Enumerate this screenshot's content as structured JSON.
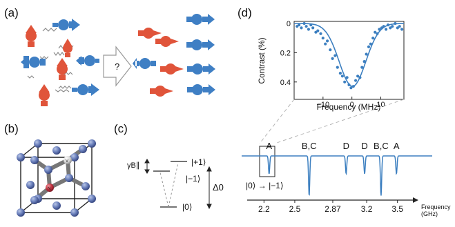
{
  "panel_labels": {
    "a": "(a)",
    "b": "(b)",
    "c": "(c)",
    "d": "(d)"
  },
  "panel_a": {
    "arrow_label": "?"
  },
  "panel_b": {
    "atom_n": "N",
    "atom_v": "V"
  },
  "panel_c": {
    "level_plus": "|+1⟩",
    "level_minus": "|−1⟩",
    "level_zero": "|0⟩",
    "gamma_label": "γB∥",
    "delta_label": "Δ0"
  },
  "chart_data": [
    {
      "type": "scatter",
      "xlabel": "Frequency (MHz)",
      "ylabel": "Contrast (%)",
      "xlim": [
        -20,
        18
      ],
      "ylim": [
        0,
        0.5
      ],
      "y_inverted": true,
      "xticks": [
        -10,
        0,
        10
      ],
      "yticks": [
        0,
        0.2,
        0.4
      ],
      "xtick_labels": [
        "−10",
        "0",
        "10"
      ],
      "ytick_labels": [
        "0",
        "0.2",
        "0.4"
      ],
      "points": [
        [
          -19,
          0.02
        ],
        [
          -18.3,
          0.01
        ],
        [
          -17.5,
          0.03
        ],
        [
          -16.5,
          0.0
        ],
        [
          -15.8,
          0.02
        ],
        [
          -15,
          0.04
        ],
        [
          -14.2,
          0.01
        ],
        [
          -13.5,
          0.03
        ],
        [
          -12.5,
          0.06
        ],
        [
          -11.8,
          0.05
        ],
        [
          -10.8,
          0.07
        ],
        [
          -10,
          0.1
        ],
        [
          -9.2,
          0.14
        ],
        [
          -8.5,
          0.12
        ],
        [
          -7.5,
          0.18
        ],
        [
          -6.7,
          0.24
        ],
        [
          -5.8,
          0.22
        ],
        [
          -5,
          0.3
        ],
        [
          -4,
          0.34
        ],
        [
          -3.3,
          0.36
        ],
        [
          -2.5,
          0.4
        ],
        [
          -1.7,
          0.37
        ],
        [
          -1,
          0.42
        ],
        [
          -0.3,
          0.44
        ],
        [
          0.5,
          0.43
        ],
        [
          1.3,
          0.39
        ],
        [
          2,
          0.36
        ],
        [
          2.8,
          0.37
        ],
        [
          3.5,
          0.3
        ],
        [
          4.3,
          0.26
        ],
        [
          5,
          0.21
        ],
        [
          5.8,
          0.16
        ],
        [
          6.5,
          0.14
        ],
        [
          7.3,
          0.1
        ],
        [
          8,
          0.06
        ],
        [
          8.8,
          0.07
        ],
        [
          9.5,
          0.04
        ],
        [
          10.3,
          0.03
        ],
        [
          11,
          0.02
        ],
        [
          11.8,
          0.04
        ],
        [
          12.5,
          0.01
        ],
        [
          13.3,
          0.03
        ],
        [
          14,
          0.02
        ],
        [
          15,
          0.0
        ],
        [
          15.8,
          0.03
        ],
        [
          16.5,
          0.02
        ],
        [
          17.3,
          0.04
        ]
      ],
      "fit": {
        "shape": "gaussian",
        "center": 0.2,
        "depth": 0.43,
        "sigma": 4.6
      }
    },
    {
      "type": "line",
      "xlabel": "Frequency (GHz)",
      "xlabel_lines": [
        "Frequency",
        "(GHz)"
      ],
      "xticks": [
        2.2,
        2.5,
        2.87,
        3.2,
        3.5
      ],
      "xtick_labels": [
        "2.2",
        "2.5",
        "2.87",
        "3.2",
        "3.5"
      ],
      "xlim": [
        2.05,
        3.65
      ],
      "dips": [
        {
          "label": "A",
          "center": 2.25,
          "depth": 0.45
        },
        {
          "label": "B,C",
          "center": 2.64,
          "depth": 1.0
        },
        {
          "label": "D",
          "center": 3.0,
          "depth": 0.45
        },
        {
          "label": "D",
          "center": 3.18,
          "depth": 0.45
        },
        {
          "label": "B,C",
          "center": 3.34,
          "depth": 1.0
        },
        {
          "label": "A",
          "center": 3.49,
          "depth": 0.45
        }
      ],
      "transition_label": "|0⟩ → |−1⟩"
    }
  ]
}
